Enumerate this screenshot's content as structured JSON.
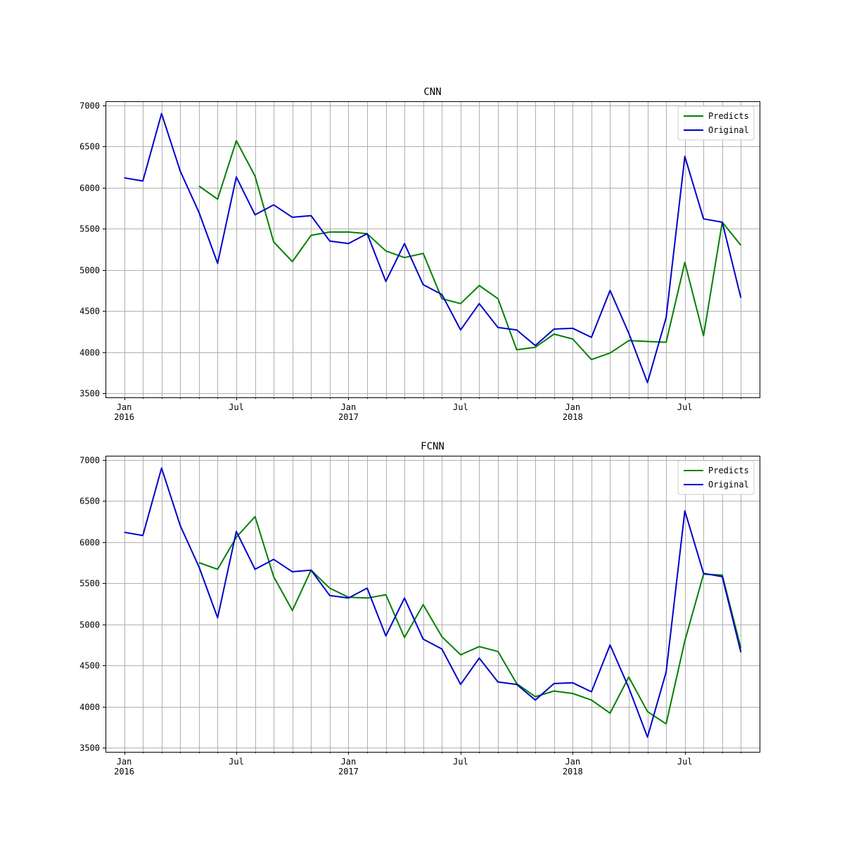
{
  "chart_data": [
    {
      "type": "line",
      "title": "CNN",
      "xlabel": "",
      "ylabel": "",
      "x_start": "2016-01",
      "x": [
        "2016-01",
        "2016-02",
        "2016-03",
        "2016-04",
        "2016-05",
        "2016-06",
        "2016-07",
        "2016-08",
        "2016-09",
        "2016-10",
        "2016-11",
        "2016-12",
        "2017-01",
        "2017-02",
        "2017-03",
        "2017-04",
        "2017-05",
        "2017-06",
        "2017-07",
        "2017-08",
        "2017-09",
        "2017-10",
        "2017-11",
        "2017-12",
        "2018-01",
        "2018-02",
        "2018-03",
        "2018-04",
        "2018-05",
        "2018-06",
        "2018-07",
        "2018-08",
        "2018-09",
        "2018-10"
      ],
      "xlim": [
        "2015-12",
        "2018-11"
      ],
      "ylim": [
        3450,
        7050
      ],
      "yticks": [
        3500,
        4000,
        4500,
        5000,
        5500,
        6000,
        6500,
        7000
      ],
      "xtick_labels": [
        {
          "date": "2016-01",
          "label": "Jan",
          "sub": "2016"
        },
        {
          "date": "2016-07",
          "label": "Jul",
          "sub": ""
        },
        {
          "date": "2017-01",
          "label": "Jan",
          "sub": "2017"
        },
        {
          "date": "2017-07",
          "label": "Jul",
          "sub": ""
        },
        {
          "date": "2018-01",
          "label": "Jan",
          "sub": "2018"
        },
        {
          "date": "2018-07",
          "label": "Jul",
          "sub": ""
        }
      ],
      "grid": true,
      "legend_position": "top-right",
      "series": [
        {
          "name": "Predicts",
          "color": "#008000",
          "values": [
            null,
            null,
            null,
            null,
            6020,
            5860,
            6570,
            6140,
            5340,
            5100,
            5420,
            5460,
            5460,
            5440,
            5230,
            5150,
            5200,
            4650,
            4590,
            4810,
            4650,
            4030,
            4060,
            4220,
            4160,
            3910,
            3990,
            4140,
            4130,
            4120,
            5090,
            4200,
            5580,
            5300
          ]
        },
        {
          "name": "Original",
          "color": "#0000cc",
          "values": [
            6120,
            6080,
            6900,
            6200,
            5700,
            5080,
            6130,
            5670,
            5790,
            5640,
            5660,
            5350,
            5320,
            5440,
            4860,
            5320,
            4820,
            4700,
            4270,
            4590,
            4300,
            4270,
            4080,
            4280,
            4290,
            4180,
            4750,
            4230,
            3630,
            4420,
            6380,
            5620,
            5580,
            4660
          ]
        }
      ]
    },
    {
      "type": "line",
      "title": "FCNN",
      "xlabel": "",
      "ylabel": "",
      "x_start": "2016-01",
      "x": [
        "2016-01",
        "2016-02",
        "2016-03",
        "2016-04",
        "2016-05",
        "2016-06",
        "2016-07",
        "2016-08",
        "2016-09",
        "2016-10",
        "2016-11",
        "2016-12",
        "2017-01",
        "2017-02",
        "2017-03",
        "2017-04",
        "2017-05",
        "2017-06",
        "2017-07",
        "2017-08",
        "2017-09",
        "2017-10",
        "2017-11",
        "2017-12",
        "2018-01",
        "2018-02",
        "2018-03",
        "2018-04",
        "2018-05",
        "2018-06",
        "2018-07",
        "2018-08",
        "2018-09",
        "2018-10"
      ],
      "xlim": [
        "2015-12",
        "2018-11"
      ],
      "ylim": [
        3450,
        7050
      ],
      "yticks": [
        3500,
        4000,
        4500,
        5000,
        5500,
        6000,
        6500,
        7000
      ],
      "xtick_labels": [
        {
          "date": "2016-01",
          "label": "Jan",
          "sub": "2016"
        },
        {
          "date": "2016-07",
          "label": "Jul",
          "sub": ""
        },
        {
          "date": "2017-01",
          "label": "Jan",
          "sub": "2017"
        },
        {
          "date": "2017-07",
          "label": "Jul",
          "sub": ""
        },
        {
          "date": "2018-01",
          "label": "Jan",
          "sub": "2018"
        },
        {
          "date": "2018-07",
          "label": "Jul",
          "sub": ""
        }
      ],
      "grid": true,
      "legend_position": "top-right",
      "series": [
        {
          "name": "Predicts",
          "color": "#008000",
          "values": [
            null,
            null,
            null,
            null,
            5750,
            5670,
            6060,
            6310,
            5580,
            5170,
            5660,
            5440,
            5330,
            5320,
            5360,
            4840,
            5240,
            4850,
            4630,
            4730,
            4670,
            4280,
            4120,
            4190,
            4160,
            4080,
            3920,
            4360,
            3940,
            3790,
            4800,
            5610,
            5600,
            4710
          ]
        },
        {
          "name": "Original",
          "color": "#0000cc",
          "values": [
            6120,
            6080,
            6900,
            6200,
            5700,
            5080,
            6130,
            5670,
            5790,
            5640,
            5660,
            5350,
            5320,
            5440,
            4860,
            5320,
            4820,
            4700,
            4270,
            4590,
            4300,
            4270,
            4080,
            4280,
            4290,
            4180,
            4750,
            4230,
            3630,
            4420,
            6380,
            5620,
            5580,
            4660
          ]
        }
      ]
    }
  ]
}
